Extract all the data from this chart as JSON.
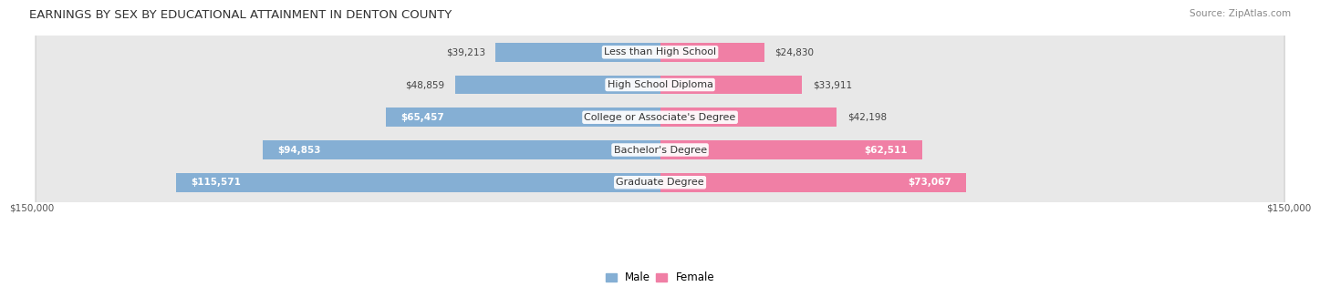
{
  "title": "EARNINGS BY SEX BY EDUCATIONAL ATTAINMENT IN DENTON COUNTY",
  "source": "Source: ZipAtlas.com",
  "categories": [
    "Less than High School",
    "High School Diploma",
    "College or Associate's Degree",
    "Bachelor's Degree",
    "Graduate Degree"
  ],
  "male_values": [
    39213,
    48859,
    65457,
    94853,
    115571
  ],
  "female_values": [
    24830,
    33911,
    42198,
    62511,
    73067
  ],
  "male_color": "#85afd4",
  "female_color": "#f07fa5",
  "row_bg_color": "#e8e8e8",
  "row_edge_color": "#d0d0d0",
  "xlim": 150000,
  "xlabel_left": "$150,000",
  "xlabel_right": "$150,000",
  "title_fontsize": 9.5,
  "source_fontsize": 7.5,
  "label_fontsize": 8,
  "value_fontsize": 7.5,
  "legend_fontsize": 8.5,
  "background_color": "#ffffff",
  "male_inside_threshold": 60000,
  "female_inside_threshold": 55000
}
